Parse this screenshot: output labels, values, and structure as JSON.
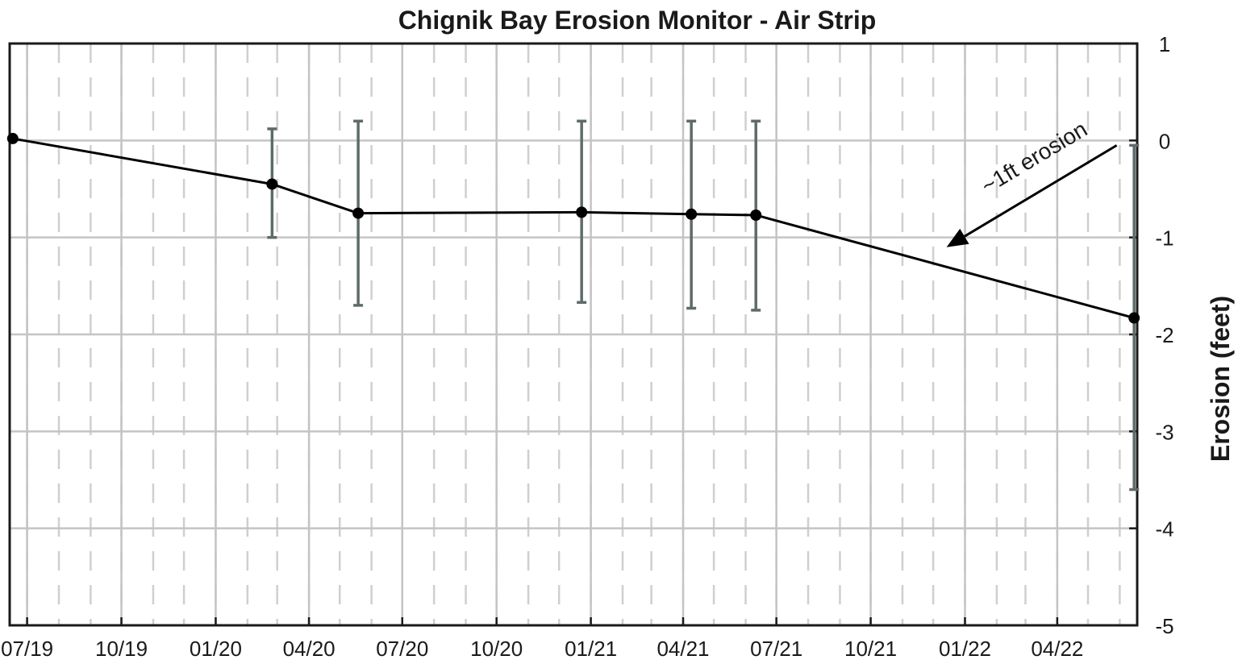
{
  "chart_data": {
    "type": "line",
    "title": "Chignik Bay Erosion Monitor - Air Strip",
    "xlabel": "",
    "ylabel": "Erosion (feet)",
    "y_axis_side": "right",
    "ylim": [
      -5,
      1
    ],
    "y_ticks": [
      1,
      0,
      -1,
      -2,
      -3,
      -4,
      -5
    ],
    "y_tick_labels": [
      "1",
      "0",
      "-1",
      "-2",
      "-3",
      "-4",
      "-5"
    ],
    "xlim": [
      "2019-06-14",
      "2022-06-18"
    ],
    "x_ticks": [
      "2019-07-01",
      "2019-10-01",
      "2020-01-01",
      "2020-04-01",
      "2020-07-01",
      "2020-10-01",
      "2021-01-01",
      "2021-04-01",
      "2021-07-01",
      "2021-10-01",
      "2022-01-01",
      "2022-04-01"
    ],
    "x_tick_labels": [
      "07/19",
      "10/19",
      "01/20",
      "04/20",
      "07/20",
      "10/20",
      "01/21",
      "04/21",
      "07/21",
      "10/21",
      "01/22",
      "04/22"
    ],
    "grid": true,
    "colors": {
      "line": "#000000",
      "error_bars": "#5f6b6b",
      "grid": "#c4c4c4",
      "minor_grid": "#cfcfcf"
    },
    "series": [
      {
        "x": [
          "2019-06-17",
          "2020-02-25",
          "2020-05-19",
          "2020-12-23",
          "2021-04-09",
          "2021-06-11",
          "2022-06-15"
        ],
        "y": [
          0.02,
          -0.45,
          -0.75,
          -0.74,
          -0.76,
          -0.77,
          -1.83
        ],
        "error_low": [
          null,
          -1.0,
          -1.7,
          -1.67,
          -1.73,
          -1.75,
          -3.6
        ],
        "error_high": [
          null,
          0.12,
          0.2,
          0.2,
          0.2,
          0.2,
          -0.05
        ]
      }
    ],
    "annotations": [
      {
        "text": "~1ft erosion",
        "arrow_from": [
          "2022-05-29",
          -0.05
        ],
        "arrow_to": [
          "2021-12-14",
          -1.1
        ]
      }
    ]
  }
}
